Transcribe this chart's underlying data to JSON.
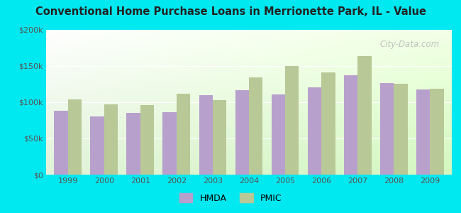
{
  "title": "Conventional Home Purchase Loans in Merrionette Park, IL - Value",
  "years": [
    1999,
    2000,
    2001,
    2002,
    2003,
    2004,
    2005,
    2006,
    2007,
    2008,
    2009
  ],
  "hmda_values": [
    88000,
    80000,
    85000,
    86000,
    110000,
    117000,
    111000,
    121000,
    137000,
    126000,
    118000
  ],
  "pmic_values": [
    104000,
    97000,
    96000,
    112000,
    103000,
    134000,
    150000,
    141000,
    164000,
    125000,
    119000
  ],
  "hmda_color": "#b8a0cc",
  "pmic_color": "#b8c896",
  "outer_background": "#00e8f0",
  "ylim": [
    0,
    200000
  ],
  "yticks": [
    0,
    50000,
    100000,
    150000,
    200000
  ],
  "ytick_labels": [
    "$0",
    "$50k",
    "$100k",
    "$150k",
    "$200k"
  ],
  "legend_hmda": "HMDA",
  "legend_pmic": "PMIC",
  "bar_width": 0.38,
  "watermark": "City-Data.com"
}
